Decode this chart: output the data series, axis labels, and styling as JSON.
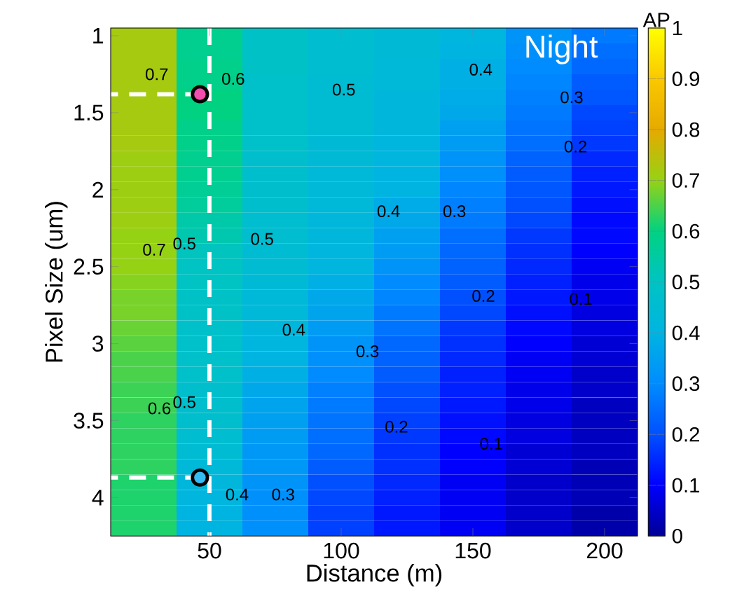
{
  "chart_data": {
    "type": "heatmap",
    "xlabel": "Distance (m)",
    "ylabel": "Pixel Size (um)",
    "clabel": "AP",
    "categories": [
      null,
      "50",
      null,
      "100",
      null,
      "150",
      null,
      "200"
    ],
    "y_categories": [
      "1",
      null,
      null,
      null,
      null,
      "1.5",
      null,
      null,
      null,
      null,
      "2",
      null,
      null,
      null,
      null,
      "2.5",
      null,
      null,
      null,
      null,
      "3",
      null,
      null,
      null,
      null,
      "3.5",
      null,
      null,
      null,
      null,
      "4",
      null,
      null
    ],
    "clim": [
      0,
      1
    ],
    "cticks": [
      0,
      0.1,
      0.2,
      0.3,
      0.4,
      0.5,
      0.6,
      0.7,
      0.8,
      0.9,
      1
    ],
    "cells": [
      [
        0.72,
        0.58,
        0.49,
        0.46,
        0.44,
        0.41,
        0.32,
        0.27
      ],
      [
        0.72,
        0.58,
        0.49,
        0.46,
        0.44,
        0.4,
        0.31,
        0.25
      ],
      [
        0.72,
        0.59,
        0.49,
        0.46,
        0.43,
        0.39,
        0.3,
        0.24
      ],
      [
        0.72,
        0.59,
        0.48,
        0.45,
        0.43,
        0.39,
        0.29,
        0.22
      ],
      [
        0.72,
        0.6,
        0.48,
        0.45,
        0.42,
        0.38,
        0.28,
        0.21
      ],
      [
        0.72,
        0.6,
        0.48,
        0.45,
        0.42,
        0.37,
        0.27,
        0.19
      ],
      [
        0.72,
        0.59,
        0.48,
        0.45,
        0.42,
        0.35,
        0.26,
        0.18
      ],
      [
        0.72,
        0.59,
        0.48,
        0.44,
        0.41,
        0.34,
        0.25,
        0.17
      ],
      [
        0.71,
        0.58,
        0.47,
        0.44,
        0.41,
        0.32,
        0.23,
        0.15
      ],
      [
        0.71,
        0.58,
        0.47,
        0.43,
        0.4,
        0.31,
        0.22,
        0.14
      ],
      [
        0.71,
        0.57,
        0.47,
        0.43,
        0.4,
        0.29,
        0.21,
        0.13
      ],
      [
        0.71,
        0.56,
        0.47,
        0.43,
        0.38,
        0.28,
        0.2,
        0.12
      ],
      [
        0.71,
        0.54,
        0.46,
        0.42,
        0.37,
        0.27,
        0.19,
        0.11
      ],
      [
        0.7,
        0.53,
        0.46,
        0.42,
        0.35,
        0.25,
        0.17,
        0.11
      ],
      [
        0.7,
        0.51,
        0.45,
        0.41,
        0.34,
        0.24,
        0.16,
        0.1
      ],
      [
        0.7,
        0.5,
        0.45,
        0.41,
        0.32,
        0.23,
        0.15,
        0.09
      ],
      [
        0.69,
        0.5,
        0.44,
        0.39,
        0.3,
        0.22,
        0.14,
        0.08
      ],
      [
        0.68,
        0.49,
        0.43,
        0.37,
        0.29,
        0.2,
        0.13,
        0.08
      ],
      [
        0.68,
        0.49,
        0.43,
        0.36,
        0.27,
        0.19,
        0.12,
        0.07
      ],
      [
        0.67,
        0.48,
        0.42,
        0.34,
        0.26,
        0.17,
        0.11,
        0.07
      ],
      [
        0.66,
        0.48,
        0.41,
        0.32,
        0.24,
        0.16,
        0.1,
        0.06
      ],
      [
        0.65,
        0.48,
        0.4,
        0.31,
        0.23,
        0.15,
        0.09,
        0.06
      ],
      [
        0.65,
        0.48,
        0.39,
        0.3,
        0.22,
        0.14,
        0.09,
        0.05
      ],
      [
        0.64,
        0.47,
        0.37,
        0.28,
        0.2,
        0.14,
        0.08,
        0.05
      ],
      [
        0.64,
        0.47,
        0.36,
        0.27,
        0.19,
        0.13,
        0.08,
        0.04
      ],
      [
        0.63,
        0.47,
        0.35,
        0.26,
        0.18,
        0.12,
        0.07,
        0.04
      ],
      [
        0.63,
        0.46,
        0.34,
        0.25,
        0.17,
        0.11,
        0.07,
        0.04
      ],
      [
        0.63,
        0.45,
        0.33,
        0.24,
        0.16,
        0.1,
        0.06,
        0.04
      ],
      [
        0.63,
        0.43,
        0.33,
        0.22,
        0.16,
        0.1,
        0.06,
        0.03
      ],
      [
        0.62,
        0.42,
        0.32,
        0.2,
        0.15,
        0.09,
        0.05,
        0.03
      ],
      [
        0.62,
        0.41,
        0.31,
        0.19,
        0.14,
        0.09,
        0.05,
        0.03
      ],
      [
        0.62,
        0.4,
        0.31,
        0.18,
        0.13,
        0.09,
        0.05,
        0.02
      ],
      [
        0.62,
        0.4,
        0.31,
        0.18,
        0.13,
        0.09,
        0.05,
        0.02
      ]
    ],
    "ref_lines": [
      {
        "axis": "x",
        "value": "50",
        "color": "#ffffff",
        "line_style": "dashed"
      }
    ],
    "annotations": [
      "Night",
      "0.7",
      "0.6",
      "0.5",
      "0.4",
      "0.3",
      "0.7",
      "0.5",
      "0.5",
      "0.4",
      "0.3",
      "0.2",
      "0.6",
      "0.5",
      "0.4",
      "0.3",
      "0.2",
      "0.1",
      "0.4",
      "0.3",
      "0.2",
      "0.1"
    ]
  }
}
